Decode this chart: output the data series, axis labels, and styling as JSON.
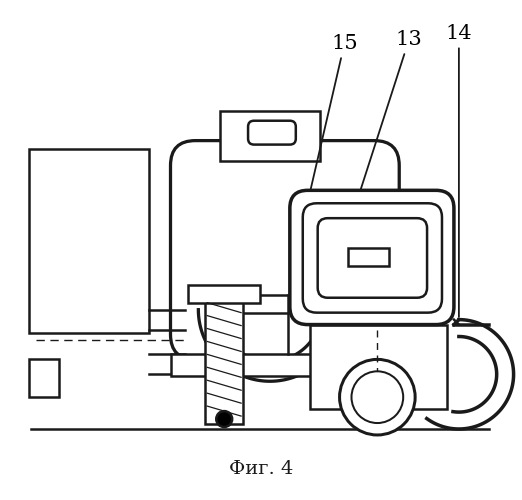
{
  "title": "Фиг. 4",
  "background_color": "#ffffff",
  "line_color": "#1a1a1a",
  "line_width": 1.8,
  "fig_width": 5.22,
  "fig_height": 5.0,
  "dpi": 100
}
